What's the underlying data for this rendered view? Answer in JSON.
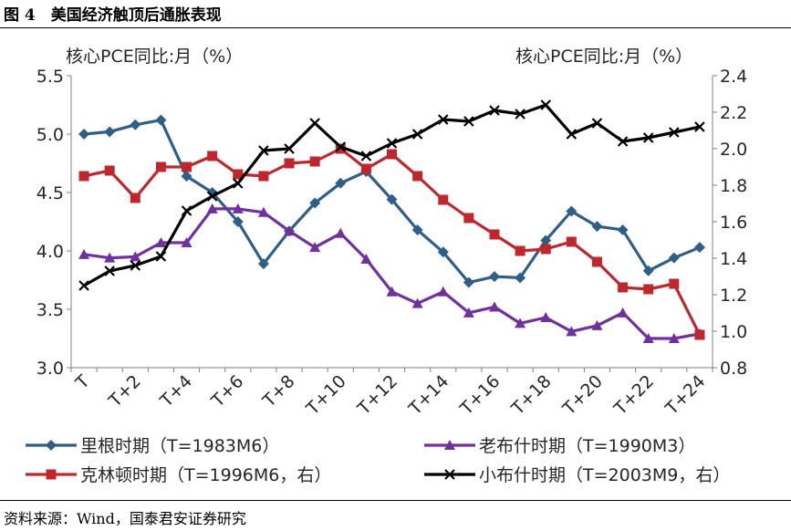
{
  "figure_title": "图 4　美国经济触顶后通胀表现",
  "source_note": "资料来源：Wind，国泰君安证券研究",
  "chart_data": {
    "type": "line",
    "left_axis_label": "核心PCE同比:月（%）",
    "right_axis_label": "核心PCE同比:月（%）",
    "ylim_left": [
      3.0,
      5.5
    ],
    "ylim_right": [
      0.8,
      2.4
    ],
    "y_ticks_left": [
      "3.0",
      "3.5",
      "4.0",
      "4.5",
      "5.0",
      "5.5"
    ],
    "y_ticks_right": [
      "0.8",
      "1.0",
      "1.2",
      "1.4",
      "1.6",
      "1.8",
      "2.0",
      "2.2",
      "2.4"
    ],
    "x": [
      "T",
      "T+1",
      "T+2",
      "T+3",
      "T+4",
      "T+5",
      "T+6",
      "T+7",
      "T+8",
      "T+9",
      "T+10",
      "T+11",
      "T+12",
      "T+13",
      "T+14",
      "T+15",
      "T+16",
      "T+17",
      "T+18",
      "T+19",
      "T+20",
      "T+21",
      "T+22",
      "T+23",
      "T+24"
    ],
    "x_tick_labels": [
      "T",
      "T+2",
      "T+4",
      "T+6",
      "T+8",
      "T+10",
      "T+12",
      "T+14",
      "T+16",
      "T+18",
      "T+20",
      "T+22",
      "T+24"
    ],
    "grid": false,
    "legend_placement": "bottom",
    "series": [
      {
        "name": "里根时期（T=1983M6）",
        "axis": "left",
        "color": "#2e5f8a",
        "marker": "diamond",
        "values": [
          5.0,
          5.02,
          5.08,
          5.12,
          4.64,
          4.5,
          4.25,
          3.89,
          4.17,
          4.41,
          4.58,
          4.68,
          4.44,
          4.18,
          3.99,
          3.73,
          3.78,
          3.77,
          4.09,
          4.34,
          4.21,
          4.18,
          3.83,
          3.94,
          4.03
        ]
      },
      {
        "name": "老布什时期（T=1990M3）",
        "axis": "left",
        "color": "#7030a0",
        "marker": "triangle",
        "values": [
          3.97,
          3.94,
          3.95,
          4.07,
          4.07,
          4.36,
          4.36,
          4.33,
          4.17,
          4.03,
          4.15,
          3.93,
          3.65,
          3.55,
          3.65,
          3.47,
          3.52,
          3.38,
          3.43,
          3.31,
          3.36,
          3.47,
          3.25,
          3.25,
          3.29
        ]
      },
      {
        "name": "克林顿时期（T=1996M6，右）",
        "axis": "right",
        "color": "#c0272d",
        "marker": "square",
        "values": [
          1.85,
          1.88,
          1.73,
          1.9,
          1.9,
          1.96,
          1.86,
          1.85,
          1.92,
          1.93,
          2.0,
          1.89,
          1.97,
          1.85,
          1.72,
          1.62,
          1.53,
          1.44,
          1.45,
          1.49,
          1.38,
          1.24,
          1.23,
          1.26,
          0.98
        ]
      },
      {
        "name": "小布什时期（T=2003M9，右）",
        "axis": "right",
        "color": "#000000",
        "marker": "x",
        "values": [
          1.25,
          1.33,
          1.36,
          1.41,
          1.66,
          1.74,
          1.81,
          1.99,
          2.0,
          2.14,
          2.01,
          1.96,
          2.03,
          2.08,
          2.16,
          2.15,
          2.21,
          2.19,
          2.24,
          2.08,
          2.14,
          2.04,
          2.06,
          2.09,
          2.12
        ]
      }
    ]
  }
}
